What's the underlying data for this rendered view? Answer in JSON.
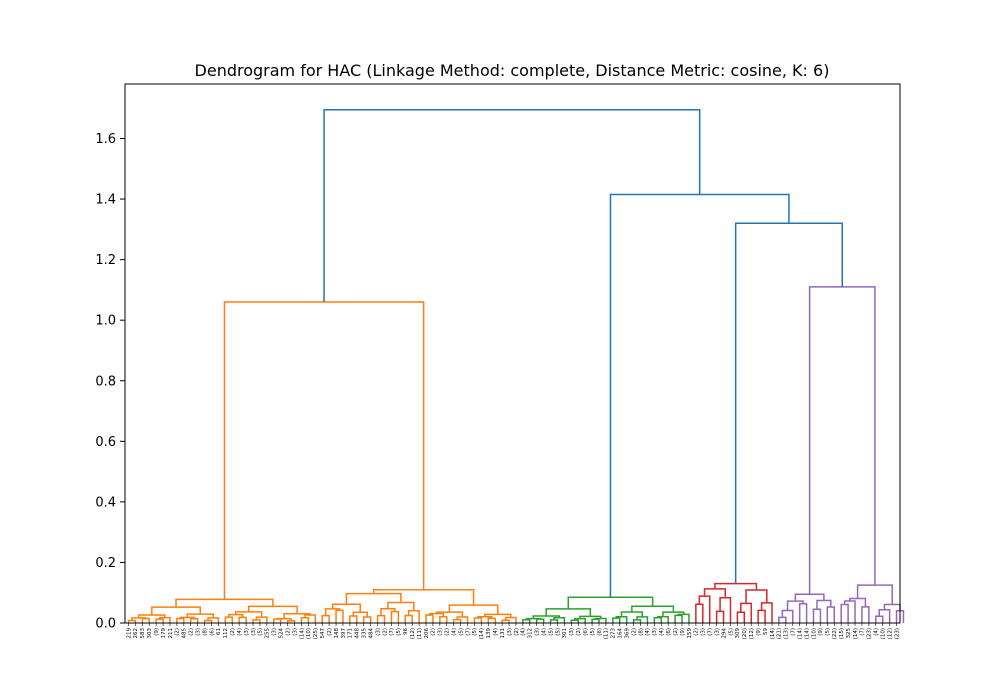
{
  "chart_data": {
    "type": "dendrogram",
    "title": "Dendrogram for HAC (Linkage Method: complete, Distance Metric: cosine, K: 6)",
    "xlabel": "",
    "ylabel": "",
    "ylim": [
      0,
      1.78
    ],
    "yticks": [
      "0.0",
      "0.2",
      "0.4",
      "0.6",
      "0.8",
      "1.0",
      "1.2",
      "1.4",
      "1.6"
    ],
    "grid": false,
    "leaf_labels": [
      "219",
      "262",
      "583",
      "303",
      "(9)",
      "179",
      "211",
      "(2)",
      "485",
      "(2)",
      "(3)",
      "(8)",
      "(6)",
      "61",
      "112",
      "(2)",
      "(4)",
      "(3)",
      "(3)",
      "(5)",
      "255",
      "(3)",
      "524",
      "(2)",
      "(3)",
      "(14)",
      "(10)",
      "(25)",
      "547",
      "(2)",
      "148",
      "397",
      "171",
      "448",
      "335",
      "484",
      "(3)",
      "(2)",
      "(7)",
      "(5)",
      "96",
      "(12)",
      "(11)",
      "206",
      "(2)",
      "(3)",
      "(2)",
      "(4)",
      "(5)",
      "(7)",
      "(5)",
      "(14)",
      "139",
      "(4)",
      "131",
      "(3)",
      "(2)",
      "(4)",
      "312",
      "(3)",
      "(4)",
      "(5)",
      "(5)",
      "301",
      "(3)",
      "(2)",
      "(6)",
      "(5)",
      "(6)",
      "(11)",
      "273",
      "164",
      "369",
      "(2)",
      "(8)",
      "(4)",
      "(3)",
      "(4)",
      "(6)",
      "(2)",
      "(9)",
      "159",
      "(2)",
      "(3)",
      "(7)",
      "(3)",
      "294",
      "(5)",
      "309",
      "(20)",
      "(12)",
      "(9)",
      "59",
      "(14)",
      "(21)",
      "(13)",
      "(7)",
      "(14)",
      "(14)",
      "(10)",
      "(9)",
      "(5)",
      "(22)",
      "(15)",
      "325",
      "(14)",
      "(7)",
      "(23)",
      "(4)",
      "(10)",
      "(12)",
      "(23)"
    ],
    "clusters": [
      {
        "name": "C1",
        "color": "#ff7f0e",
        "first_leaf": 0,
        "last_leaf": 56,
        "merge_height": 1.06
      },
      {
        "name": "C2",
        "color": "#2ca02c",
        "first_leaf": 57,
        "last_leaf": 81,
        "merge_height": 0.085
      },
      {
        "name": "C3",
        "color": "#d62728",
        "first_leaf": 82,
        "last_leaf": 93,
        "merge_height": 0.13
      },
      {
        "name": "C4",
        "color": "#9467bd",
        "first_leaf": 94,
        "last_leaf": 112,
        "merge_height": 1.11
      }
    ],
    "top_links": [
      {
        "left": "C1",
        "right": "C2+C3+C4",
        "height": 1.695,
        "color": "#1f77b4"
      },
      {
        "left": "C2",
        "right": "C3+C4",
        "height": 1.415,
        "color": "#1f77b4"
      },
      {
        "left": "C3",
        "right": "C4",
        "height": 1.32,
        "color": "#1f77b4"
      }
    ],
    "colors": {
      "above_threshold": "#1f77b4",
      "orange": "#ff7f0e",
      "green": "#2ca02c",
      "red": "#d62728",
      "purple": "#9467bd"
    }
  }
}
